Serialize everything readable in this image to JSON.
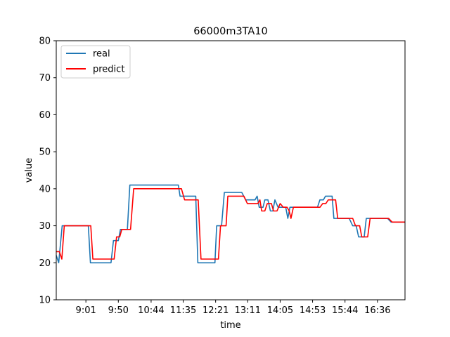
{
  "chart_data": {
    "type": "line",
    "title": "66000m3TA10",
    "xlabel": "time",
    "ylabel": "value",
    "ylim": [
      10,
      80
    ],
    "yticks": [
      10,
      20,
      30,
      40,
      50,
      60,
      70,
      80
    ],
    "xlim": [
      0,
      100
    ],
    "xticks": [
      {
        "x": 8.5,
        "label": "9:01"
      },
      {
        "x": 17.8,
        "label": "9:50"
      },
      {
        "x": 27.2,
        "label": "10:44"
      },
      {
        "x": 36.4,
        "label": "11:35"
      },
      {
        "x": 45.7,
        "label": "12:21"
      },
      {
        "x": 54.9,
        "label": "13:11"
      },
      {
        "x": 64.2,
        "label": "14:05"
      },
      {
        "x": 73.5,
        "label": "14:53"
      },
      {
        "x": 82.8,
        "label": "15:44"
      },
      {
        "x": 92.1,
        "label": "16:36"
      }
    ],
    "legend_position": "top-left",
    "grid": false,
    "series": [
      {
        "name": "real",
        "color": "#1f77b4",
        "points": [
          [
            0,
            22
          ],
          [
            0.7,
            20
          ],
          [
            1.7,
            30
          ],
          [
            3,
            30
          ],
          [
            9.2,
            30
          ],
          [
            9.8,
            20
          ],
          [
            12,
            20
          ],
          [
            15.7,
            20
          ],
          [
            16.4,
            26
          ],
          [
            17.8,
            26
          ],
          [
            18.4,
            29
          ],
          [
            20.4,
            29
          ],
          [
            21.1,
            41
          ],
          [
            29.3,
            41
          ],
          [
            35,
            41
          ],
          [
            35.5,
            38
          ],
          [
            40,
            38
          ],
          [
            40.6,
            20
          ],
          [
            45.5,
            20
          ],
          [
            46,
            30
          ],
          [
            47.4,
            30
          ],
          [
            48.2,
            39
          ],
          [
            53.2,
            39
          ],
          [
            54.3,
            37
          ],
          [
            57,
            37
          ],
          [
            57.6,
            38
          ],
          [
            58.2,
            35
          ],
          [
            59.3,
            35
          ],
          [
            59.8,
            37
          ],
          [
            60.7,
            37
          ],
          [
            61.4,
            34
          ],
          [
            62.1,
            34
          ],
          [
            62.7,
            37
          ],
          [
            63.6,
            35
          ],
          [
            64.2,
            35
          ],
          [
            65.8,
            35
          ],
          [
            66.4,
            32
          ],
          [
            67,
            35
          ],
          [
            68,
            35
          ],
          [
            74.9,
            35
          ],
          [
            75.6,
            37
          ],
          [
            76.6,
            37
          ],
          [
            77.2,
            38
          ],
          [
            79.1,
            38
          ],
          [
            79.6,
            32
          ],
          [
            84,
            32
          ],
          [
            85,
            30
          ],
          [
            86,
            30
          ],
          [
            86.7,
            27
          ],
          [
            88.3,
            27
          ],
          [
            88.9,
            32
          ],
          [
            95,
            32
          ],
          [
            96,
            31
          ],
          [
            100,
            31
          ]
        ]
      },
      {
        "name": "predict",
        "color": "#ff0000",
        "points": [
          [
            0,
            23
          ],
          [
            0.9,
            23
          ],
          [
            1.6,
            21
          ],
          [
            2.3,
            30
          ],
          [
            3,
            30
          ],
          [
            9.9,
            30
          ],
          [
            10.5,
            21
          ],
          [
            16.6,
            21
          ],
          [
            17.3,
            27
          ],
          [
            18.2,
            27
          ],
          [
            18.8,
            29
          ],
          [
            21.3,
            29
          ],
          [
            22.2,
            40
          ],
          [
            29.3,
            40
          ],
          [
            35.9,
            40
          ],
          [
            36.8,
            37
          ],
          [
            40.7,
            37
          ],
          [
            41.5,
            21
          ],
          [
            46.5,
            21
          ],
          [
            47.1,
            30
          ],
          [
            48.7,
            30
          ],
          [
            49.2,
            38
          ],
          [
            53.8,
            38
          ],
          [
            54.8,
            36
          ],
          [
            57.8,
            36
          ],
          [
            58.4,
            37
          ],
          [
            58.9,
            34
          ],
          [
            59.8,
            34
          ],
          [
            60.5,
            36
          ],
          [
            61.7,
            36
          ],
          [
            62.3,
            34
          ],
          [
            63.3,
            34
          ],
          [
            64.2,
            36
          ],
          [
            65.1,
            35
          ],
          [
            66.2,
            35
          ],
          [
            66.8,
            34
          ],
          [
            67.3,
            32
          ],
          [
            68,
            35
          ],
          [
            68.6,
            35
          ],
          [
            75.6,
            35
          ],
          [
            76.4,
            36
          ],
          [
            77.3,
            36
          ],
          [
            78,
            37
          ],
          [
            80.1,
            37
          ],
          [
            80.7,
            32
          ],
          [
            85,
            32
          ],
          [
            85.8,
            30
          ],
          [
            87,
            30
          ],
          [
            87.6,
            27
          ],
          [
            89.3,
            27
          ],
          [
            90,
            32
          ],
          [
            95.3,
            32
          ],
          [
            96.3,
            31
          ],
          [
            100,
            31
          ]
        ]
      }
    ]
  }
}
